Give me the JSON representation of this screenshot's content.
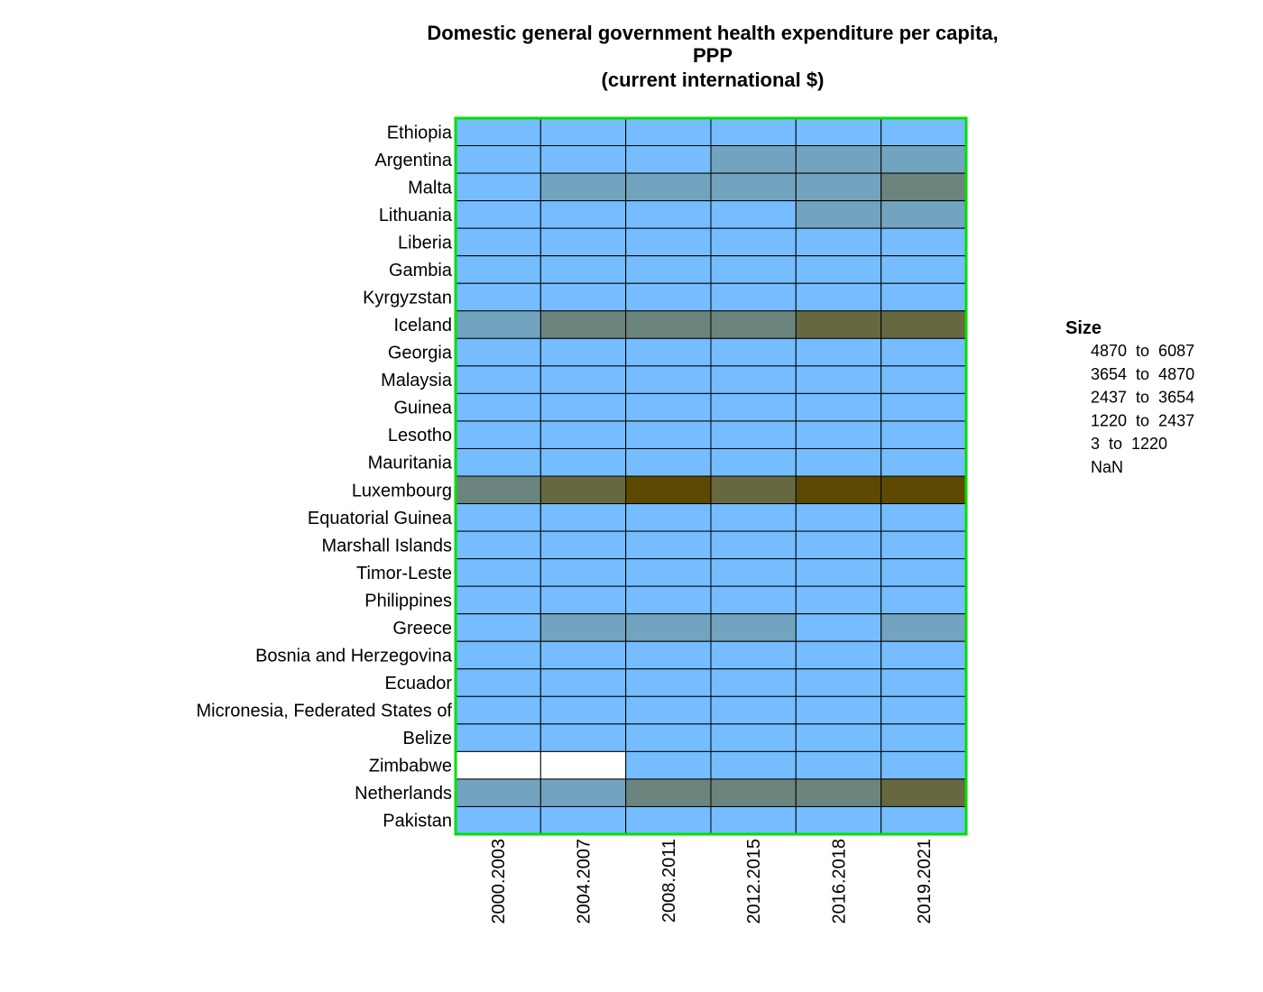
{
  "chart_data": {
    "type": "heatmap",
    "title_lines": [
      "Domestic general government health expenditure per capita,",
      "PPP",
      "(current international $)"
    ],
    "x": [
      "2000.2003",
      "2004.2007",
      "2008.2011",
      "2012.2015",
      "2016.2018",
      "2019.2021"
    ],
    "y": [
      "Ethiopia",
      "Argentina",
      "Malta",
      "Lithuania",
      "Liberia",
      "Gambia",
      "Kyrgyzstan",
      "Iceland",
      "Georgia",
      "Malaysia",
      "Guinea",
      "Lesotho",
      "Mauritania",
      "Luxembourg",
      "Equatorial Guinea",
      "Marshall Islands",
      "Timor-Leste",
      "Philippines",
      "Greece",
      "Bosnia and Herzegovina",
      "Ecuador",
      "Micronesia, Federated States of",
      "Belize",
      "Zimbabwe",
      "Netherlands",
      "Pakistan"
    ],
    "bins": [
      {
        "label": "NaN",
        "color": "#ffffff"
      },
      {
        "label": "3  to  1220",
        "color": "#75bdff"
      },
      {
        "label": "1220  to  2437",
        "color": "#72a3bf"
      },
      {
        "label": "2437  to  3654",
        "color": "#6b847d"
      },
      {
        "label": "3654  to  4870",
        "color": "#67683f"
      },
      {
        "label": "4870  to  6087",
        "color": "#5d4800"
      }
    ],
    "legend_order": [
      5,
      4,
      3,
      2,
      1,
      0
    ],
    "legend_title": "Size",
    "legend_position": "right",
    "frame_color": "#00e000",
    "cell_bins": [
      [
        1,
        1,
        1,
        1,
        1,
        1
      ],
      [
        1,
        1,
        1,
        2,
        2,
        2
      ],
      [
        1,
        2,
        2,
        2,
        2,
        3
      ],
      [
        1,
        1,
        1,
        1,
        2,
        2
      ],
      [
        1,
        1,
        1,
        1,
        1,
        1
      ],
      [
        1,
        1,
        1,
        1,
        1,
        1
      ],
      [
        1,
        1,
        1,
        1,
        1,
        1
      ],
      [
        2,
        3,
        3,
        3,
        4,
        4
      ],
      [
        1,
        1,
        1,
        1,
        1,
        1
      ],
      [
        1,
        1,
        1,
        1,
        1,
        1
      ],
      [
        1,
        1,
        1,
        1,
        1,
        1
      ],
      [
        1,
        1,
        1,
        1,
        1,
        1
      ],
      [
        1,
        1,
        1,
        1,
        1,
        1
      ],
      [
        3,
        4,
        5,
        4,
        5,
        5
      ],
      [
        1,
        1,
        1,
        1,
        1,
        1
      ],
      [
        1,
        1,
        1,
        1,
        1,
        1
      ],
      [
        1,
        1,
        1,
        1,
        1,
        1
      ],
      [
        1,
        1,
        1,
        1,
        1,
        1
      ],
      [
        1,
        2,
        2,
        2,
        1,
        2
      ],
      [
        1,
        1,
        1,
        1,
        1,
        1
      ],
      [
        1,
        1,
        1,
        1,
        1,
        1
      ],
      [
        1,
        1,
        1,
        1,
        1,
        1
      ],
      [
        1,
        1,
        1,
        1,
        1,
        1
      ],
      [
        0,
        0,
        1,
        1,
        1,
        1
      ],
      [
        2,
        2,
        3,
        3,
        3,
        4
      ],
      [
        1,
        1,
        1,
        1,
        1,
        1
      ]
    ]
  }
}
